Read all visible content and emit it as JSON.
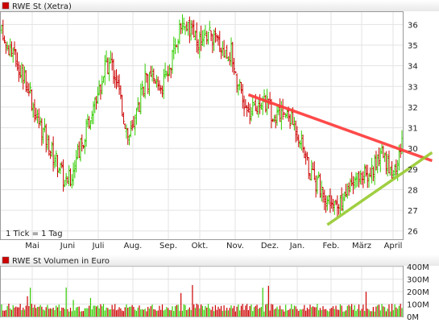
{
  "chart_data": [
    {
      "type": "candlestick",
      "title": "RWE St (Xetra)",
      "note": "1 Tick = 1 Tag",
      "x_tick_labels": [
        "Mai",
        "Juni",
        "Juli",
        "Aug.",
        "Sep.",
        "Okt.",
        "Nov.",
        "Dez.",
        "Jan.",
        "Feb.",
        "März",
        "April"
      ],
      "y_tick_labels": [
        "36",
        "35",
        "34",
        "33",
        "32",
        "31",
        "30",
        "29",
        "28",
        "27",
        "26"
      ],
      "ylim": [
        25.6,
        36.6
      ],
      "grid": true,
      "colors": {
        "up": "#33cc00",
        "down": "#cc0000",
        "resistance": "#ff3b3b",
        "support": "#99cc33"
      },
      "price_path": [
        [
          0,
          35.6
        ],
        [
          4,
          35.0
        ],
        [
          8,
          34.6
        ],
        [
          12,
          34.0
        ],
        [
          16,
          33.5
        ],
        [
          20,
          32.6
        ],
        [
          24,
          31.6
        ],
        [
          28,
          31.0
        ],
        [
          32,
          30.3
        ],
        [
          36,
          29.7
        ],
        [
          40,
          29.2
        ],
        [
          44,
          28.4
        ],
        [
          48,
          28.6
        ],
        [
          52,
          29.3
        ],
        [
          56,
          30.3
        ],
        [
          60,
          31.2
        ],
        [
          64,
          32.1
        ],
        [
          68,
          33.0
        ],
        [
          72,
          33.8
        ],
        [
          76,
          34.2
        ],
        [
          80,
          33.4
        ],
        [
          84,
          32.0
        ],
        [
          88,
          30.6
        ],
        [
          92,
          30.9
        ],
        [
          96,
          32.2
        ],
        [
          100,
          33.3
        ],
        [
          104,
          33.3
        ],
        [
          108,
          33.1
        ],
        [
          112,
          33.0
        ],
        [
          116,
          33.6
        ],
        [
          120,
          34.6
        ],
        [
          124,
          35.6
        ],
        [
          128,
          36.0
        ],
        [
          132,
          35.6
        ],
        [
          136,
          35.2
        ],
        [
          140,
          35.1
        ],
        [
          144,
          35.7
        ],
        [
          148,
          35.3
        ],
        [
          152,
          35.1
        ],
        [
          156,
          34.6
        ],
        [
          160,
          34.7
        ],
        [
          164,
          33.4
        ],
        [
          168,
          32.2
        ],
        [
          172,
          31.6
        ],
        [
          176,
          31.9
        ],
        [
          180,
          32.4
        ],
        [
          184,
          32.2
        ],
        [
          188,
          31.8
        ],
        [
          192,
          31.4
        ],
        [
          196,
          31.7
        ],
        [
          200,
          31.6
        ],
        [
          204,
          31.2
        ],
        [
          208,
          30.5
        ],
        [
          212,
          29.6
        ],
        [
          216,
          28.6
        ],
        [
          220,
          28.3
        ],
        [
          224,
          28.0
        ],
        [
          228,
          27.3
        ],
        [
          232,
          27.0
        ],
        [
          236,
          27.4
        ],
        [
          240,
          27.7
        ],
        [
          244,
          28.3
        ],
        [
          248,
          28.5
        ],
        [
          252,
          28.9
        ],
        [
          256,
          28.7
        ],
        [
          260,
          29.2
        ],
        [
          264,
          29.7
        ],
        [
          268,
          29.2
        ],
        [
          272,
          28.9
        ],
        [
          276,
          29.2
        ],
        [
          279,
          30.5
        ]
      ],
      "trendlines": [
        {
          "role": "resistance",
          "from": [
            172,
            32.6
          ],
          "to": [
            300,
            29.4
          ]
        },
        {
          "role": "support",
          "from": [
            227,
            26.3
          ],
          "to": [
            300,
            29.8
          ]
        }
      ]
    },
    {
      "type": "bar",
      "title": "RWE St Volumen in Euro",
      "y_tick_labels": [
        "400M",
        "300M",
        "200M",
        "100M",
        "0M"
      ],
      "ylim": [
        0,
        400
      ],
      "unit": "M Euro",
      "typical_daily_volume": 90,
      "peak_daily_volume": 260
    }
  ]
}
